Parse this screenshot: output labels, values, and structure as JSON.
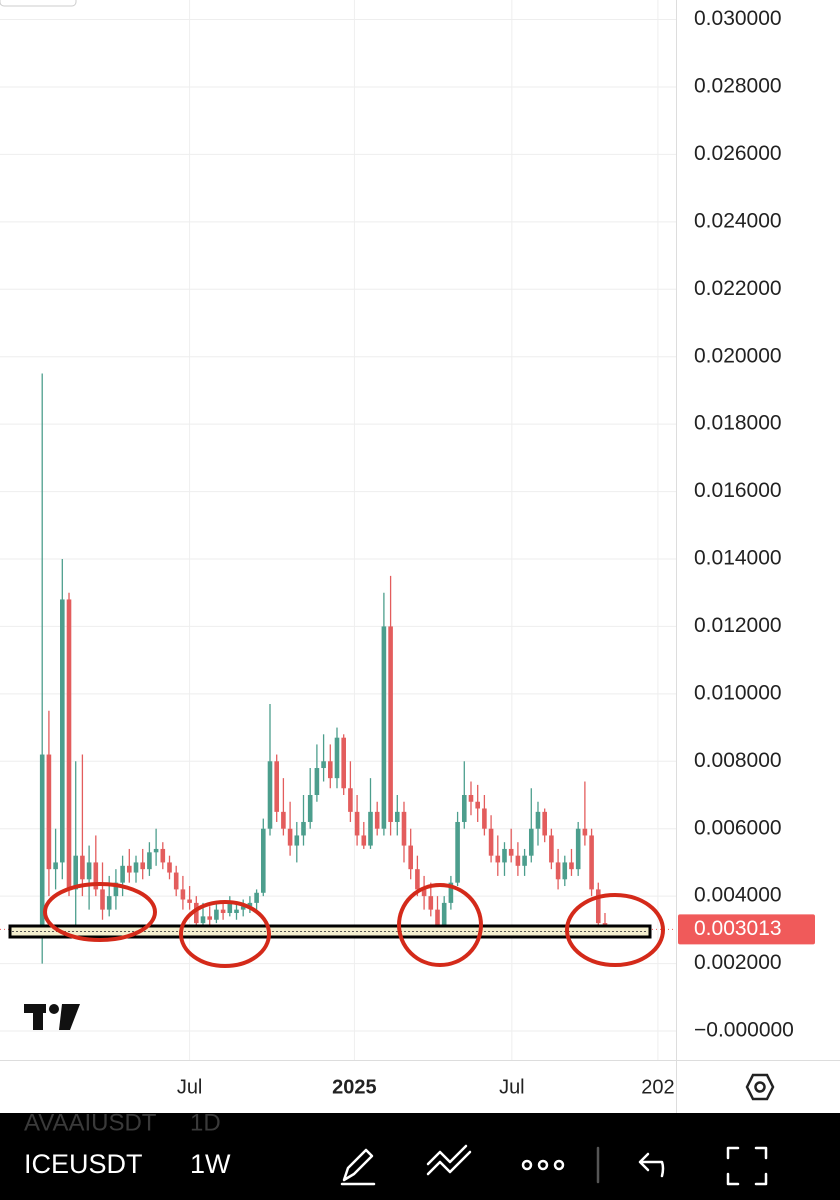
{
  "chart_data": {
    "type": "candlestick",
    "open": [
      0.003,
      0.0082,
      0.0048,
      0.005,
      0.0128,
      0.0042,
      0.0052,
      0.0045,
      0.005,
      0.0042,
      0.0036,
      0.004,
      0.0044,
      0.0049,
      0.0047,
      0.005,
      0.0048,
      0.0053,
      0.0054,
      0.005,
      0.0047,
      0.0042,
      0.0039,
      0.0038,
      0.0032,
      0.0034,
      0.0033,
      0.0036,
      0.0035,
      0.0035,
      0.0036,
      0.0037,
      0.0038,
      0.0041,
      0.006,
      0.008,
      0.0065,
      0.006,
      0.0055,
      0.0058,
      0.0062,
      0.007,
      0.0078,
      0.008,
      0.0075,
      0.0087,
      0.0072,
      0.0065,
      0.0058,
      0.0055,
      0.0065,
      0.006,
      0.012,
      0.0062,
      0.0065,
      0.0055,
      0.0048,
      0.0042,
      0.004,
      0.0036,
      0.0031,
      0.0038,
      0.0044,
      0.0062,
      0.007,
      0.0068,
      0.0066,
      0.006,
      0.0052,
      0.005,
      0.0054,
      0.0052,
      0.0049,
      0.0052,
      0.006,
      0.0065,
      0.0058,
      0.005,
      0.0045,
      0.005,
      0.0048,
      0.006,
      0.0058,
      0.0042,
      0.0032
    ],
    "high": [
      0.0195,
      0.0095,
      0.006,
      0.014,
      0.013,
      0.008,
      0.0082,
      0.0055,
      0.0058,
      0.005,
      0.0046,
      0.0048,
      0.0052,
      0.0054,
      0.0052,
      0.0054,
      0.0056,
      0.006,
      0.0056,
      0.0052,
      0.0049,
      0.0046,
      0.0043,
      0.004,
      0.0038,
      0.0037,
      0.0038,
      0.0038,
      0.004,
      0.0038,
      0.0039,
      0.004,
      0.0042,
      0.0063,
      0.0097,
      0.0082,
      0.0075,
      0.0068,
      0.0062,
      0.007,
      0.0078,
      0.0085,
      0.0088,
      0.0085,
      0.009,
      0.0088,
      0.008,
      0.007,
      0.0062,
      0.0075,
      0.0068,
      0.013,
      0.0135,
      0.007,
      0.0068,
      0.006,
      0.0052,
      0.0046,
      0.0044,
      0.004,
      0.004,
      0.0046,
      0.0065,
      0.008,
      0.0074,
      0.0073,
      0.007,
      0.0064,
      0.0058,
      0.0056,
      0.006,
      0.0056,
      0.0054,
      0.0072,
      0.0068,
      0.0066,
      0.006,
      0.0054,
      0.0052,
      0.0054,
      0.0062,
      0.0074,
      0.006,
      0.0044,
      0.0035
    ],
    "low": [
      0.002,
      0.004,
      0.0042,
      0.0045,
      0.004,
      0.003,
      0.004,
      0.0036,
      0.004,
      0.0033,
      0.0034,
      0.0036,
      0.004,
      0.0044,
      0.0044,
      0.0045,
      0.0046,
      0.0049,
      0.0048,
      0.0045,
      0.004,
      0.0036,
      0.0036,
      0.003,
      0.0028,
      0.0031,
      0.0032,
      0.0033,
      0.0034,
      0.0033,
      0.0034,
      0.0035,
      0.0036,
      0.004,
      0.0058,
      0.0062,
      0.0058,
      0.0052,
      0.005,
      0.0055,
      0.006,
      0.0068,
      0.0074,
      0.0072,
      0.0072,
      0.007,
      0.0062,
      0.0055,
      0.0054,
      0.0054,
      0.0058,
      0.0058,
      0.0058,
      0.0058,
      0.005,
      0.0045,
      0.004,
      0.0036,
      0.0034,
      0.003,
      0.0029,
      0.0036,
      0.0043,
      0.006,
      0.0064,
      0.0062,
      0.0058,
      0.005,
      0.0046,
      0.0046,
      0.005,
      0.0046,
      0.0046,
      0.005,
      0.0055,
      0.0056,
      0.0048,
      0.0042,
      0.0043,
      0.0046,
      0.0046,
      0.0055,
      0.004,
      0.003,
      0.0029
    ],
    "close": [
      0.0082,
      0.0048,
      0.005,
      0.0128,
      0.0042,
      0.0052,
      0.0045,
      0.005,
      0.0042,
      0.0036,
      0.004,
      0.0044,
      0.0049,
      0.0047,
      0.005,
      0.0048,
      0.0053,
      0.0054,
      0.005,
      0.0047,
      0.0042,
      0.0039,
      0.0038,
      0.0032,
      0.0034,
      0.0033,
      0.0036,
      0.0035,
      0.0038,
      0.0036,
      0.0037,
      0.0038,
      0.0041,
      0.006,
      0.008,
      0.0065,
      0.006,
      0.0055,
      0.0058,
      0.0062,
      0.007,
      0.0078,
      0.008,
      0.0075,
      0.0087,
      0.0072,
      0.0065,
      0.0058,
      0.0055,
      0.0065,
      0.006,
      0.012,
      0.0062,
      0.0065,
      0.0055,
      0.0048,
      0.0042,
      0.004,
      0.0036,
      0.0031,
      0.0038,
      0.0044,
      0.0062,
      0.007,
      0.0068,
      0.0066,
      0.006,
      0.0052,
      0.005,
      0.0054,
      0.0052,
      0.0049,
      0.0052,
      0.006,
      0.0065,
      0.0058,
      0.005,
      0.0045,
      0.005,
      0.0048,
      0.006,
      0.0058,
      0.0042,
      0.0032,
      0.003013
    ],
    "up_color": "#4c9e8d",
    "down_color": "#e35d5d",
    "last_price": 0.003013,
    "last_price_color": "#f05a5a",
    "xlim": [
      -6.3,
      94.6
    ],
    "xticks": [
      {
        "value": 22,
        "label": "Jul"
      },
      {
        "value": 46.6,
        "label": "2025"
      },
      {
        "value": 70.1,
        "label": "Jul"
      },
      {
        "value": 91.9,
        "label": "202"
      }
    ],
    "ylim": [
      -0.00086,
      0.03058
    ],
    "yticks": [
      {
        "value": 0,
        "label": "−0.000000"
      },
      {
        "value": 0.002,
        "label": "0.002000"
      },
      {
        "value": 0.004,
        "label": "0.004000"
      },
      {
        "value": 0.006,
        "label": "0.006000"
      },
      {
        "value": 0.008,
        "label": "0.008000"
      },
      {
        "value": 0.01,
        "label": "0.010000"
      },
      {
        "value": 0.012,
        "label": "0.012000"
      },
      {
        "value": 0.014,
        "label": "0.014000"
      },
      {
        "value": 0.016,
        "label": "0.016000"
      },
      {
        "value": 0.018,
        "label": "0.018000"
      },
      {
        "value": 0.02,
        "label": "0.020000"
      },
      {
        "value": 0.022,
        "label": "0.022000"
      },
      {
        "value": 0.024,
        "label": "0.024000"
      },
      {
        "value": 0.026,
        "label": "0.026000"
      },
      {
        "value": 0.028,
        "label": "0.028000"
      },
      {
        "value": 0.03,
        "label": "0.030000"
      }
    ],
    "grid": true
  },
  "toolbar": {
    "symbol": "ICEUSDT",
    "interval": "1W",
    "previous_symbol": "AVAAIUSDT",
    "previous_interval": "1D"
  }
}
